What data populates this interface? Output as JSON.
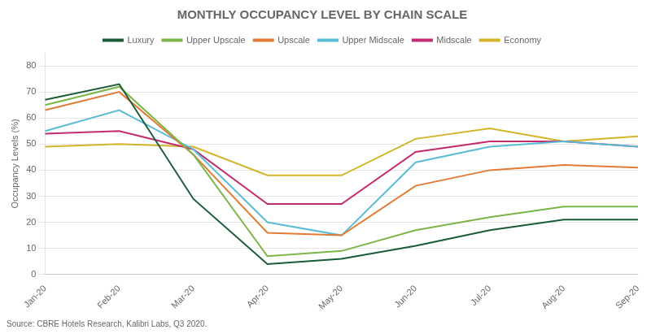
{
  "chart_data": {
    "type": "line",
    "title": "MONTHLY OCCUPANCY LEVEL BY CHAIN SCALE",
    "ylabel": "Occupancy Levels (%)",
    "source": "Source: CBRE Hotels Research, Kalibri Labs, Q3 2020.",
    "categories": [
      "Jan-20",
      "Feb-20",
      "Mar-20",
      "Apr-20",
      "May-20",
      "Jun-20",
      "Jul-20",
      "Aug-20",
      "Sep-20"
    ],
    "series": [
      {
        "name": "Luxury",
        "color": "#1a5c38",
        "values": [
          67,
          73,
          29,
          4,
          6,
          11,
          17,
          21,
          21
        ]
      },
      {
        "name": "Upper Upscale",
        "color": "#7ab648",
        "values": [
          65,
          72,
          46,
          7,
          9,
          17,
          22,
          26,
          26
        ]
      },
      {
        "name": "Upscale",
        "color": "#e27b35",
        "values": [
          63,
          70,
          46,
          16,
          15,
          34,
          40,
          42,
          41
        ]
      },
      {
        "name": "Upper Midscale",
        "color": "#5bbcd6",
        "values": [
          55,
          63,
          48,
          20,
          15,
          43,
          49,
          51,
          49
        ]
      },
      {
        "name": "Midscale",
        "color": "#c42b6e",
        "values": [
          54,
          55,
          48,
          27,
          27,
          47,
          51,
          51,
          49
        ]
      },
      {
        "name": "Economy",
        "color": "#d4b52a",
        "values": [
          49,
          50,
          49,
          38,
          38,
          52,
          56,
          51,
          53
        ]
      }
    ],
    "ylim": [
      0,
      85
    ],
    "yticks": [
      0,
      10,
      20,
      30,
      40,
      50,
      60,
      70,
      80
    ],
    "grid": true,
    "legend": "top"
  }
}
